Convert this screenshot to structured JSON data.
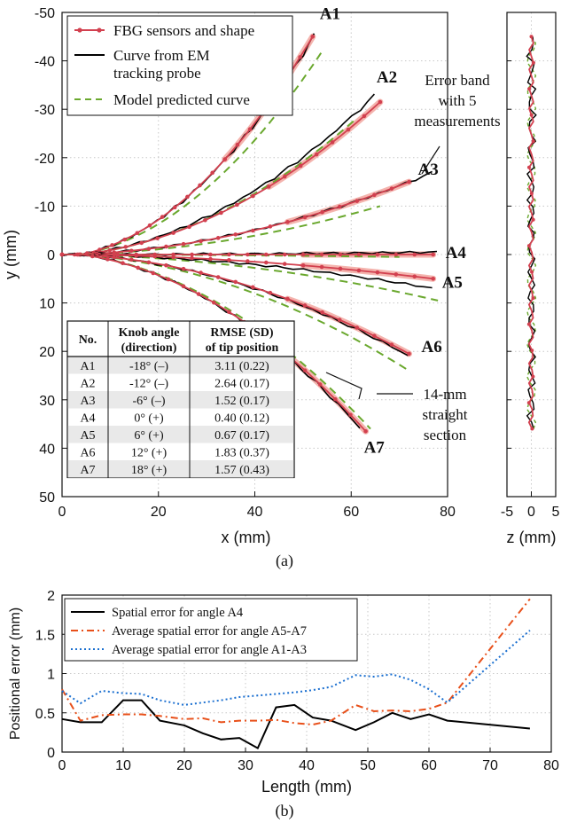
{
  "chart_data": [
    {
      "type": "line",
      "panel_label": "(a)",
      "xlabel": "x (mm)",
      "ylabel": "y (mm)",
      "xlim": [
        0,
        80
      ],
      "ylim": [
        -50,
        50
      ],
      "y_reversed": true,
      "xticks": [
        "0",
        "20",
        "40",
        "60",
        "80"
      ],
      "yticks": [
        "-50",
        "-40",
        "-30",
        "-20",
        "-10",
        "0",
        "10",
        "20",
        "30",
        "40",
        "50"
      ],
      "grid": "dotted",
      "legend": {
        "placement": "top-left",
        "entries": [
          "FBG sensors and shape",
          "Curve from EM tracking probe",
          "Model predicted curve"
        ]
      },
      "series_colors": {
        "fbg": "#d2404f",
        "em": "#000000",
        "model": "#6aa82e",
        "band": "#f2a7a0"
      },
      "curves": [
        {
          "label": "A1",
          "tip": [
            52,
            -45
          ],
          "em_tip": [
            52.5,
            -45.5
          ],
          "model_tip": [
            54,
            -42
          ]
        },
        {
          "label": "A2",
          "tip": [
            66,
            -31.5
          ],
          "em_tip": [
            65,
            -33
          ],
          "model_tip": [
            61,
            -28
          ]
        },
        {
          "label": "A3",
          "tip": [
            72,
            -15
          ],
          "em_tip": [
            77,
            -17
          ],
          "model_tip": [
            66,
            -10
          ]
        },
        {
          "label": "A4",
          "tip": [
            77,
            0
          ],
          "em_tip": [
            78,
            -0.5
          ],
          "model_tip": [
            70,
            0.5
          ]
        },
        {
          "label": "A5",
          "tip": [
            77,
            5
          ],
          "em_tip": [
            77,
            7
          ],
          "model_tip": [
            78,
            9.5
          ]
        },
        {
          "label": "A6",
          "tip": [
            72,
            20.5
          ],
          "em_tip": [
            72,
            21
          ],
          "model_tip": [
            72,
            24
          ]
        },
        {
          "label": "A7",
          "tip": [
            63,
            36.5
          ],
          "em_tip": [
            62,
            36
          ],
          "model_tip": [
            64,
            36
          ]
        }
      ],
      "annotations": {
        "error_band": "Error band with 5 measurements",
        "straight_section": "14-mm straight section"
      },
      "table": {
        "headers": [
          "No.",
          "Knob angle (direction)",
          "RMSE (SD) of tip position"
        ],
        "rows": [
          [
            "A1",
            "-18° (–)",
            "3.11 (0.22)"
          ],
          [
            "A2",
            "-12° (–)",
            "2.64 (0.17)"
          ],
          [
            "A3",
            "-6° (–)",
            "1.52 (0.17)"
          ],
          [
            "A4",
            "0° (+)",
            "0.40 (0.12)"
          ],
          [
            "A5",
            "6° (+)",
            "0.67 (0.17)"
          ],
          [
            "A6",
            "12° (+)",
            "1.83 (0.37)"
          ],
          [
            "A7",
            "18° (+)",
            "1.57 (0.43)"
          ]
        ]
      }
    },
    {
      "type": "line",
      "xlabel": "z (mm)",
      "xlim": [
        -5,
        5
      ],
      "xticks": [
        "-5",
        "0",
        "5"
      ],
      "ylim": [
        -50,
        50
      ]
    },
    {
      "type": "line",
      "panel_label": "(b)",
      "xlabel": "Length (mm)",
      "ylabel": "Positional error (mm)",
      "xlim": [
        0,
        80
      ],
      "ylim": [
        0,
        2
      ],
      "xticks": [
        "0",
        "10",
        "20",
        "30",
        "40",
        "50",
        "60",
        "70",
        "80"
      ],
      "yticks": [
        "0",
        "0.5",
        "1",
        "1.5",
        "2"
      ],
      "grid": "dotted",
      "legend_placement": "top-left",
      "series": [
        {
          "name": "Spatial error for angle A4",
          "color": "#000000",
          "style": "solid",
          "x": [
            0,
            3,
            6.5,
            10,
            13,
            16,
            20,
            23,
            26,
            29,
            32,
            35,
            38,
            41,
            44,
            48,
            51,
            54,
            57,
            60,
            63,
            76.5
          ],
          "y": [
            0.42,
            0.38,
            0.38,
            0.66,
            0.66,
            0.4,
            0.34,
            0.24,
            0.16,
            0.18,
            0.05,
            0.57,
            0.6,
            0.44,
            0.4,
            0.28,
            0.38,
            0.5,
            0.42,
            0.48,
            0.4,
            0.3
          ]
        },
        {
          "name": "Average spatial error for angle A5-A7",
          "color": "#e8501a",
          "style": "dashdot",
          "x": [
            0,
            3,
            6.5,
            10,
            13,
            16,
            20,
            23,
            26,
            29,
            32,
            35,
            38,
            41,
            44,
            48,
            51,
            54,
            57,
            60,
            63,
            76.5
          ],
          "y": [
            0.8,
            0.4,
            0.47,
            0.48,
            0.48,
            0.46,
            0.42,
            0.43,
            0.38,
            0.4,
            0.4,
            0.41,
            0.37,
            0.35,
            0.4,
            0.6,
            0.52,
            0.53,
            0.52,
            0.55,
            0.63,
            1.95
          ]
        },
        {
          "name": "Average spatial error for angle A1-A3",
          "color": "#1a6fd0",
          "style": "dotted",
          "x": [
            0,
            3,
            6.5,
            10,
            13,
            16,
            20,
            23,
            26,
            29,
            32,
            35,
            38,
            41,
            44,
            48,
            51,
            54,
            57,
            60,
            63,
            76.5
          ],
          "y": [
            0.78,
            0.62,
            0.78,
            0.75,
            0.74,
            0.66,
            0.6,
            0.63,
            0.66,
            0.7,
            0.72,
            0.74,
            0.76,
            0.79,
            0.83,
            0.98,
            0.96,
            0.99,
            0.92,
            0.8,
            0.63,
            1.55
          ]
        }
      ]
    }
  ]
}
